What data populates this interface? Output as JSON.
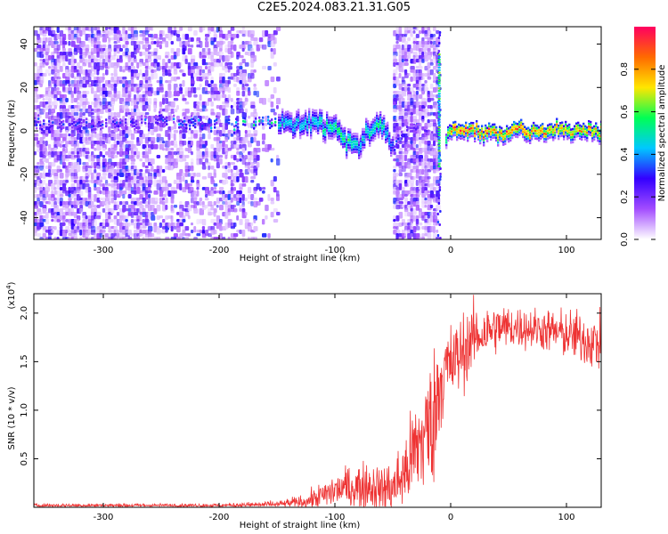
{
  "title": "C2E5.2024.083.21.31.G05",
  "chart_data": [
    {
      "type": "heatmap",
      "description_type": "spectrogram",
      "xlabel": "Height of straight line (km)",
      "ylabel": "Frequency (Hz)",
      "xlim": [
        -360,
        130
      ],
      "ylim": [
        -50,
        48
      ],
      "x_ticks": [
        -300,
        -200,
        -100,
        0,
        100
      ],
      "x_tick_labels": [
        "-300",
        "-200",
        "-100",
        "0",
        "100"
      ],
      "y_ticks": [
        -40,
        -20,
        0,
        20,
        40
      ],
      "y_tick_labels": [
        "-40",
        "-20",
        "0",
        "20",
        "40"
      ],
      "colorbar": {
        "label": "Normalized spectral amplitude",
        "range": [
          0,
          1
        ],
        "ticks": [
          0.0,
          0.2,
          0.4,
          0.6,
          0.8
        ],
        "tick_labels": [
          "0.0",
          "0.2",
          "0.4",
          "0.6",
          "0.8"
        ],
        "colors": [
          "#ffffff",
          "#a34dff",
          "#3300ff",
          "#00c8ff",
          "#00ff55",
          "#ffe600",
          "#ff6a00",
          "#ff0060"
        ]
      },
      "ridge": {
        "x": [
          -350,
          -330,
          -300,
          -270,
          -250,
          -220,
          -200,
          -180,
          -160,
          -140,
          -120,
          -100,
          -90,
          -80,
          -70,
          -60,
          -50,
          -40,
          -15,
          -10,
          0,
          10,
          20,
          40,
          60,
          80,
          100,
          120,
          130
        ],
        "freq": [
          4,
          3,
          4,
          3,
          5,
          4,
          3,
          4,
          5,
          4,
          3,
          2,
          -5,
          -6,
          2,
          3,
          -8,
          2,
          0,
          -5,
          2,
          0,
          1,
          -1,
          1,
          0,
          1,
          0,
          1
        ],
        "amplitude": [
          0.3,
          0.3,
          0.3,
          0.3,
          0.35,
          0.4,
          0.45,
          0.5,
          0.5,
          0.45,
          0.5,
          0.55,
          0.6,
          0.45,
          0.55,
          0.55,
          0.3,
          0.3,
          0.2,
          0.3,
          0.85,
          0.9,
          0.9,
          0.85,
          0.9,
          0.85,
          0.8,
          0.8,
          0.75
        ]
      }
    },
    {
      "type": "line",
      "xlabel": "Height of straight line (km)",
      "ylabel": "SNR (10 * v/v)",
      "y_multiplier_label": "(x10",
      "y_multiplier_exp": "4",
      "y_multiplier_close": ")",
      "xlim": [
        -360,
        130
      ],
      "ylim": [
        0,
        2.2
      ],
      "x_ticks": [
        -300,
        -200,
        -100,
        0,
        100
      ],
      "x_tick_labels": [
        "-300",
        "-200",
        "-100",
        "0",
        "100"
      ],
      "y_ticks": [
        0.5,
        1.0,
        1.5,
        2.0
      ],
      "y_tick_labels": [
        "0.5",
        "1.0",
        "1.5",
        "2.0"
      ],
      "color": "#ee3333",
      "series": [
        {
          "x": [
            -360,
            -300,
            -200,
            -150,
            -130,
            -120,
            -110,
            -100,
            -90,
            -80,
            -70,
            -60,
            -50,
            -40,
            -30,
            -20,
            -15,
            -12,
            -10,
            -5,
            0,
            10,
            20,
            30,
            40,
            60,
            80,
            100,
            120,
            130
          ],
          "y": [
            0.02,
            0.02,
            0.02,
            0.03,
            0.05,
            0.08,
            0.12,
            0.18,
            0.2,
            0.22,
            0.22,
            0.18,
            0.2,
            0.35,
            0.6,
            0.8,
            0.9,
            1.1,
            1.3,
            1.4,
            1.45,
            1.6,
            1.75,
            1.8,
            1.85,
            1.85,
            1.83,
            1.78,
            1.72,
            1.68
          ],
          "noise": [
            0.01,
            0.01,
            0.01,
            0.02,
            0.04,
            0.06,
            0.08,
            0.1,
            0.12,
            0.14,
            0.14,
            0.14,
            0.16,
            0.22,
            0.3,
            0.38,
            0.38,
            0.4,
            0.3,
            0.28,
            0.25,
            0.22,
            0.18,
            0.16,
            0.14,
            0.12,
            0.12,
            0.14,
            0.16,
            0.16
          ]
        }
      ]
    }
  ]
}
